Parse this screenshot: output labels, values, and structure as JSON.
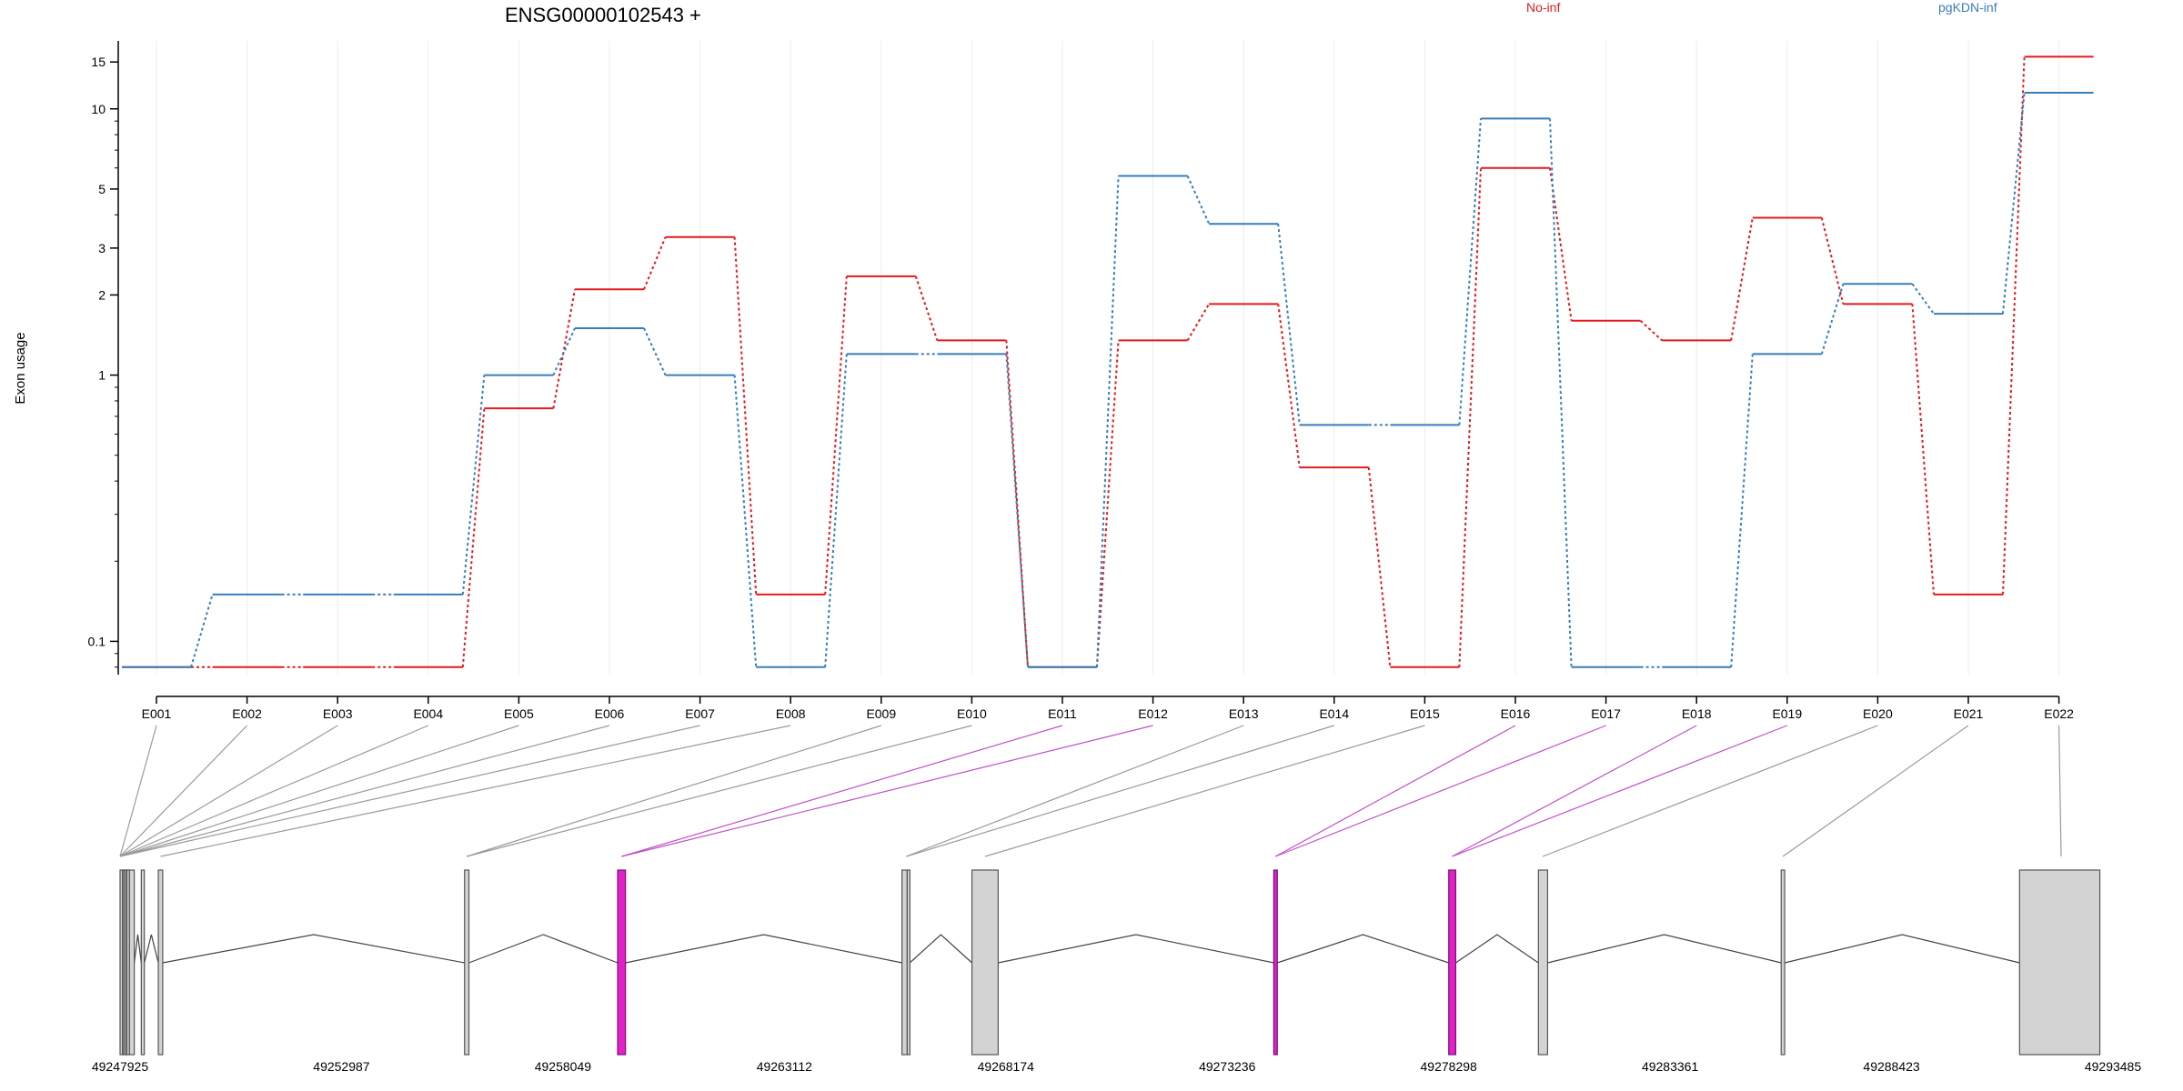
{
  "chart_data": {
    "type": "line",
    "title": "ENSG00000102543 +",
    "ylabel": "Exon usage",
    "yscale": "log",
    "ylim": [
      0.075,
      18
    ],
    "yticks": [
      {
        "value": 0.1,
        "label": "0.1"
      },
      {
        "value": 1,
        "label": "1"
      },
      {
        "value": 2,
        "label": "2"
      },
      {
        "value": 3,
        "label": "3"
      },
      {
        "value": 5,
        "label": "5"
      },
      {
        "value": 10,
        "label": "10"
      },
      {
        "value": 15,
        "label": "15"
      }
    ],
    "categories": [
      "E001",
      "E002",
      "E003",
      "E004",
      "E005",
      "E006",
      "E007",
      "E008",
      "E009",
      "E010",
      "E011",
      "E012",
      "E013",
      "E014",
      "E015",
      "E016",
      "E017",
      "E018",
      "E019",
      "E020",
      "E021",
      "E022"
    ],
    "series": [
      {
        "name": "No-inf",
        "color": "#e41a1c",
        "values": [
          0.08,
          0.08,
          0.08,
          0.08,
          0.75,
          2.1,
          3.3,
          0.15,
          2.35,
          1.35,
          0.08,
          1.35,
          1.85,
          0.45,
          0.08,
          6.0,
          1.6,
          1.35,
          3.9,
          1.85,
          0.15,
          15.7
        ]
      },
      {
        "name": "pgKDN-inf",
        "color": "#377eb8",
        "values": [
          0.08,
          0.15,
          0.15,
          0.15,
          1.0,
          1.5,
          1.0,
          0.08,
          1.2,
          1.2,
          0.08,
          5.6,
          3.7,
          0.65,
          0.65,
          9.2,
          0.08,
          0.08,
          1.2,
          2.2,
          1.7,
          11.5
        ]
      }
    ],
    "grid": "vertical",
    "legend_position": "top-right",
    "highlight_color": "#e020c8",
    "gene_model": {
      "coordinate_ticks": [
        "49247925",
        "49252987",
        "49258049",
        "49263112",
        "49268174",
        "49273236",
        "49278298",
        "49283361",
        "49288423",
        "49293485"
      ],
      "coord_range": [
        49247925,
        49293485
      ],
      "exons": [
        {
          "id": "E001",
          "start": 49247925,
          "end": 49247980,
          "highlight": false
        },
        {
          "id": "E002",
          "start": 49247980,
          "end": 49248010,
          "highlight": false
        },
        {
          "id": "E003",
          "start": 49248010,
          "end": 49248040,
          "highlight": false
        },
        {
          "id": "E004",
          "start": 49248050,
          "end": 49248070,
          "highlight": false
        },
        {
          "id": "E005",
          "start": 49248080,
          "end": 49248110,
          "highlight": false
        },
        {
          "id": "E006",
          "start": 49248140,
          "end": 49248250,
          "highlight": false
        },
        {
          "id": "E007",
          "start": 49248410,
          "end": 49248480,
          "highlight": false
        },
        {
          "id": "E008",
          "start": 49248800,
          "end": 49248900,
          "highlight": false
        },
        {
          "id": "E009",
          "start": 49255800,
          "end": 49255900,
          "highlight": false
        },
        {
          "id": "E010",
          "start": 49259300,
          "end": 49259480,
          "highlight": true
        },
        {
          "id": "E011",
          "start": 49265800,
          "end": 49265920,
          "highlight": false
        },
        {
          "id": "E012",
          "start": 49265920,
          "end": 49265980,
          "highlight": false
        },
        {
          "id": "E013",
          "start": 49267400,
          "end": 49268000,
          "highlight": false
        },
        {
          "id": "E014",
          "start": 49274300,
          "end": 49274380,
          "highlight": true
        },
        {
          "id": "E015",
          "start": 49278300,
          "end": 49278460,
          "highlight": true
        },
        {
          "id": "E016",
          "start": 49280350,
          "end": 49280560,
          "highlight": false
        },
        {
          "id": "E017",
          "start": 49285900,
          "end": 49285980,
          "highlight": false
        },
        {
          "id": "E018",
          "start": 49291350,
          "end": 49293185,
          "highlight": false
        }
      ],
      "label_links": [
        {
          "label": "E001",
          "to": 49247925
        },
        {
          "label": "E002",
          "to": 49247925
        },
        {
          "label": "E003",
          "to": 49247925
        },
        {
          "label": "E004",
          "to": 49247925
        },
        {
          "label": "E005",
          "to": 49247925
        },
        {
          "label": "E006",
          "to": 49247925
        },
        {
          "label": "E007",
          "to": 49247925
        },
        {
          "label": "E008",
          "to": 49248850
        },
        {
          "label": "E009",
          "to": 49255850
        },
        {
          "label": "E010",
          "to": 49255850
        },
        {
          "label": "E011",
          "to": 49259390,
          "highlight": true
        },
        {
          "label": "E012",
          "to": 49259390,
          "highlight": true
        },
        {
          "label": "E013",
          "to": 49265900
        },
        {
          "label": "E014",
          "to": 49265900
        },
        {
          "label": "E015",
          "to": 49267700
        },
        {
          "label": "E016",
          "to": 49274340,
          "highlight": true
        },
        {
          "label": "E017",
          "to": 49274340,
          "highlight": true
        },
        {
          "label": "E018",
          "to": 49278380,
          "highlight": true
        },
        {
          "label": "E019",
          "to": 49278380,
          "highlight": true
        },
        {
          "label": "E020",
          "to": 49280450
        },
        {
          "label": "E021",
          "to": 49285940
        },
        {
          "label": "E022",
          "to": 49292300
        }
      ]
    }
  }
}
